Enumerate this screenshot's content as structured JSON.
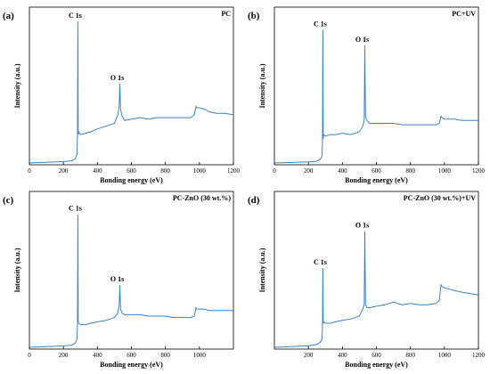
{
  "colors": {
    "line": "#3a84c6",
    "axis": "#000000"
  },
  "chart_data": [
    {
      "type": "line",
      "panel_label": "(a)",
      "legend_text": "PC",
      "legend_placement": "top-right",
      "xlabel": "Bonding energy (eV)",
      "ylabel": "Intensity (a.u.)",
      "xlim": [
        0,
        1200
      ],
      "xticks": [
        "0",
        "200",
        "400",
        "600",
        "800",
        "1000",
        "1200"
      ],
      "yticks_shown": false,
      "grid": false,
      "annotations": [
        {
          "text": "C 1s",
          "x": 285,
          "y": 1.0
        },
        {
          "text": "O 1s",
          "x": 532,
          "y": 0.56
        }
      ],
      "series": [
        {
          "x": [
            0,
            100,
            200,
            250,
            270,
            280,
            283,
            285,
            287,
            290,
            300,
            330,
            360,
            400,
            450,
            500,
            520,
            528,
            532,
            536,
            545,
            560,
            600,
            650,
            700,
            750,
            800,
            850,
            900,
            950,
            970,
            980,
            985,
            1000,
            1030,
            1060,
            1100,
            1150,
            1200
          ],
          "y": [
            0.0,
            0.005,
            0.01,
            0.015,
            0.03,
            0.06,
            0.2,
            1.0,
            0.2,
            0.22,
            0.2,
            0.21,
            0.22,
            0.24,
            0.26,
            0.28,
            0.34,
            0.4,
            0.56,
            0.38,
            0.33,
            0.3,
            0.31,
            0.32,
            0.31,
            0.32,
            0.32,
            0.32,
            0.32,
            0.32,
            0.34,
            0.4,
            0.39,
            0.39,
            0.38,
            0.36,
            0.35,
            0.35,
            0.34
          ]
        }
      ]
    },
    {
      "type": "line",
      "panel_label": "(b)",
      "legend_text": "PC+UV",
      "legend_placement": "top-right",
      "xlabel": "Bonding energy (eV)",
      "ylabel": "Intensity (a.u.)",
      "xlim": [
        0,
        1200
      ],
      "xticks": [
        "0",
        "200",
        "400",
        "600",
        "800",
        "1000",
        "1200"
      ],
      "yticks_shown": false,
      "grid": false,
      "annotations": [
        {
          "text": "C 1s",
          "x": 285,
          "y": 0.94
        },
        {
          "text": "O 1s",
          "x": 532,
          "y": 0.83
        }
      ],
      "series": [
        {
          "x": [
            0,
            100,
            200,
            250,
            270,
            280,
            283,
            285,
            287,
            290,
            300,
            330,
            360,
            400,
            450,
            500,
            520,
            528,
            532,
            536,
            545,
            560,
            600,
            650,
            700,
            750,
            800,
            850,
            900,
            950,
            970,
            980,
            985,
            1000,
            1030,
            1060,
            1100,
            1150,
            1200
          ],
          "y": [
            0.0,
            0.004,
            0.008,
            0.012,
            0.025,
            0.05,
            0.16,
            0.94,
            0.17,
            0.2,
            0.19,
            0.2,
            0.2,
            0.21,
            0.2,
            0.22,
            0.26,
            0.3,
            0.83,
            0.32,
            0.3,
            0.28,
            0.28,
            0.28,
            0.28,
            0.27,
            0.27,
            0.27,
            0.27,
            0.27,
            0.28,
            0.33,
            0.32,
            0.31,
            0.31,
            0.31,
            0.3,
            0.3,
            0.3
          ]
        }
      ]
    },
    {
      "type": "line",
      "panel_label": "(c)",
      "legend_text": "PC-ZnO (30 wt.%)",
      "legend_placement": "top-right",
      "xlabel": "Bonding energy (eV)",
      "ylabel": "Intensity (a.u.)",
      "xlim": [
        0,
        1200
      ],
      "xticks": [
        "0",
        "200",
        "400",
        "600",
        "800",
        "1000"
      ],
      "yticks_shown": false,
      "grid": false,
      "annotations": [
        {
          "text": "C 1s",
          "x": 285,
          "y": 0.94
        },
        {
          "text": "O 1s",
          "x": 532,
          "y": 0.44
        }
      ],
      "series": [
        {
          "x": [
            0,
            100,
            200,
            250,
            270,
            280,
            283,
            285,
            287,
            290,
            300,
            330,
            360,
            400,
            450,
            500,
            520,
            528,
            532,
            536,
            545,
            560,
            600,
            650,
            700,
            750,
            800,
            850,
            900,
            950,
            970,
            980,
            985,
            1000,
            1030,
            1060,
            1100,
            1150,
            1200
          ],
          "y": [
            0.0,
            0.005,
            0.01,
            0.015,
            0.03,
            0.06,
            0.17,
            0.94,
            0.18,
            0.17,
            0.16,
            0.16,
            0.17,
            0.18,
            0.19,
            0.21,
            0.24,
            0.3,
            0.44,
            0.27,
            0.24,
            0.23,
            0.23,
            0.23,
            0.22,
            0.22,
            0.22,
            0.21,
            0.21,
            0.21,
            0.22,
            0.28,
            0.27,
            0.27,
            0.27,
            0.26,
            0.26,
            0.26,
            0.26
          ]
        }
      ]
    },
    {
      "type": "line",
      "panel_label": "(d)",
      "legend_text": "PC-ZnO (30 wt.%)+UV",
      "legend_placement": "top-right",
      "xlabel": "Bonding energy (eV)",
      "ylabel": "Intensity (a.u.)",
      "xlim": [
        0,
        1200
      ],
      "xticks": [
        "200",
        "400",
        "600",
        "800",
        "1000",
        "1200"
      ],
      "yticks_shown": false,
      "grid": false,
      "annotations": [
        {
          "text": "C 1s",
          "x": 285,
          "y": 0.56
        },
        {
          "text": "O 1s",
          "x": 532,
          "y": 0.82
        }
      ],
      "series": [
        {
          "x": [
            0,
            100,
            200,
            250,
            270,
            280,
            283,
            285,
            287,
            290,
            300,
            330,
            360,
            400,
            450,
            500,
            520,
            528,
            532,
            536,
            545,
            560,
            600,
            650,
            700,
            750,
            800,
            850,
            900,
            950,
            970,
            980,
            985,
            1000,
            1030,
            1060,
            1100,
            1150,
            1200
          ],
          "y": [
            0.0,
            0.005,
            0.01,
            0.02,
            0.035,
            0.06,
            0.16,
            0.56,
            0.17,
            0.18,
            0.17,
            0.17,
            0.18,
            0.19,
            0.2,
            0.22,
            0.27,
            0.3,
            0.82,
            0.3,
            0.28,
            0.28,
            0.29,
            0.3,
            0.32,
            0.3,
            0.31,
            0.3,
            0.3,
            0.31,
            0.33,
            0.44,
            0.43,
            0.42,
            0.41,
            0.4,
            0.39,
            0.38,
            0.37
          ]
        }
      ]
    }
  ]
}
